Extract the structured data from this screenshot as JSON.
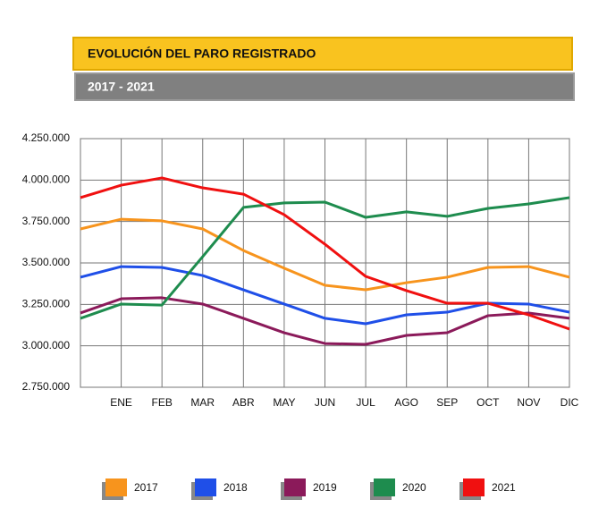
{
  "chart_data": {
    "type": "line",
    "title": "EVOLUCIÓN DEL PARO REGISTRADO",
    "subtitle": "2017 - 2021",
    "categories": [
      null,
      "ENE",
      "FEB",
      "MAR",
      "ABR",
      "MAY",
      "JUN",
      "JUL",
      "AGO",
      "SEP",
      "OCT",
      "NOV",
      "DIC"
    ],
    "series": [
      {
        "name": "2017",
        "color": "#f7941d",
        "values": [
          3705000,
          3764000,
          3754000,
          3705000,
          3575000,
          3468000,
          3365000,
          3338000,
          3381000,
          3414000,
          3473000,
          3478000,
          3414000
        ]
      },
      {
        "name": "2018",
        "color": "#1f4fe8",
        "values": [
          3414000,
          3478000,
          3473000,
          3424000,
          3338000,
          3252000,
          3166000,
          3133000,
          3187000,
          3203000,
          3257000,
          3252000,
          3203000
        ]
      },
      {
        "name": "2019",
        "color": "#8b1a5a",
        "values": [
          3198000,
          3284000,
          3290000,
          3252000,
          3166000,
          3079000,
          3014000,
          3009000,
          3063000,
          3079000,
          3182000,
          3198000,
          3166000
        ]
      },
      {
        "name": "2020",
        "color": "#1e8c4e",
        "values": [
          3166000,
          3252000,
          3246000,
          3538000,
          3835000,
          3862000,
          3867000,
          3775000,
          3808000,
          3781000,
          3829000,
          3856000,
          3894000
        ]
      },
      {
        "name": "2021",
        "color": "#f01010",
        "values": [
          3894000,
          3969000,
          4013000,
          3953000,
          3915000,
          3791000,
          3613000,
          3419000,
          3333000,
          3257000,
          3257000,
          3187000,
          3101000
        ]
      }
    ],
    "ylim": [
      2750000,
      4250000
    ],
    "yticks": [
      {
        "value": 2750000,
        "label": "2.750.000"
      },
      {
        "value": 3000000,
        "label": "3.000.000"
      },
      {
        "value": 3250000,
        "label": "3.250.000"
      },
      {
        "value": 3500000,
        "label": "3.500.000"
      },
      {
        "value": 3750000,
        "label": "3.750.000"
      },
      {
        "value": 4000000,
        "label": "4.000.000"
      },
      {
        "value": 4250000,
        "label": "4.250.000"
      }
    ],
    "grid": true
  }
}
